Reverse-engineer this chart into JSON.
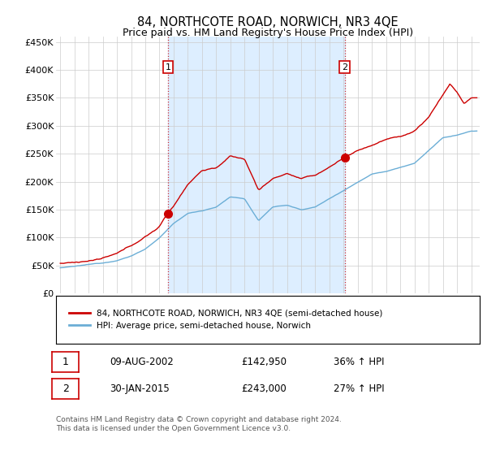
{
  "title": "84, NORTHCOTE ROAD, NORWICH, NR3 4QE",
  "subtitle": "Price paid vs. HM Land Registry's House Price Index (HPI)",
  "ylabel_ticks": [
    "£0",
    "£50K",
    "£100K",
    "£150K",
    "£200K",
    "£250K",
    "£300K",
    "£350K",
    "£400K",
    "£450K"
  ],
  "ytick_values": [
    0,
    50000,
    100000,
    150000,
    200000,
    250000,
    300000,
    350000,
    400000,
    450000
  ],
  "ylim": [
    0,
    460000
  ],
  "xlim_start": 1994.7,
  "xlim_end": 2024.6,
  "hpi_color": "#6baed6",
  "hpi_fill_color": "#c6dcf0",
  "price_color": "#cc0000",
  "dashed_line_color": "#cc0000",
  "transaction1_x": 2002.6,
  "transaction1_y": 142950,
  "transaction1_label": "1",
  "transaction2_x": 2015.08,
  "transaction2_y": 243000,
  "transaction2_label": "2",
  "legend_entries": [
    "84, NORTHCOTE ROAD, NORWICH, NR3 4QE (semi-detached house)",
    "HPI: Average price, semi-detached house, Norwich"
  ],
  "table_rows": [
    [
      "1",
      "09-AUG-2002",
      "£142,950",
      "36% ↑ HPI"
    ],
    [
      "2",
      "30-JAN-2015",
      "£243,000",
      "27% ↑ HPI"
    ]
  ],
  "footnote": "Contains HM Land Registry data © Crown copyright and database right 2024.\nThis data is licensed under the Open Government Licence v3.0.",
  "background_color": "#ffffff",
  "grid_color": "#cccccc",
  "shade_color": "#ddeeff"
}
